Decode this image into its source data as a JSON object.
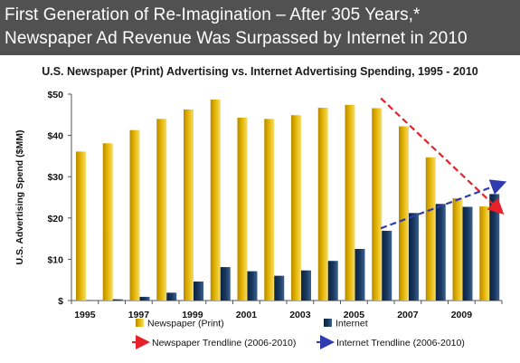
{
  "header": {
    "line1": "First Generation of Re-Imagination – After 305 Years,*",
    "line2": "Newspaper Ad Revenue Was Surpassed by Internet in 2010"
  },
  "chart_data": {
    "type": "bar",
    "title": "U.S. Newspaper (Print) Advertising vs. Internet Advertising Spending, 1995 - 2010",
    "ylabel": "U.S. Advertising Spend ($MM)",
    "xlabel": "",
    "ylim": [
      0,
      50
    ],
    "yticks": [
      0,
      10,
      20,
      30,
      40,
      50
    ],
    "ytick_labels": [
      "$",
      "$10",
      "$20",
      "$30",
      "$40",
      "$50"
    ],
    "categories": [
      "1995",
      "1996",
      "1997",
      "1998",
      "1999",
      "2000",
      "2001",
      "2002",
      "2003",
      "2004",
      "2005",
      "2006",
      "2007",
      "2008",
      "2009",
      "2010"
    ],
    "xtick_labels": [
      "1995",
      "",
      "1997",
      "",
      "1999",
      "",
      "2001",
      "",
      "2003",
      "",
      "2005",
      "",
      "2007",
      "",
      "2009",
      ""
    ],
    "series": [
      {
        "name": "Newspaper (Print)",
        "color": "#e3b300",
        "values": [
          36.1,
          38.1,
          41.3,
          44.0,
          46.3,
          48.7,
          44.3,
          44.0,
          44.9,
          46.7,
          47.4,
          46.6,
          42.2,
          34.7,
          24.8,
          22.8
        ]
      },
      {
        "name": "Internet",
        "color": "#17375e",
        "values": [
          0.1,
          0.3,
          0.9,
          1.9,
          4.6,
          8.1,
          7.1,
          6.0,
          7.3,
          9.6,
          12.5,
          16.9,
          21.2,
          23.4,
          22.7,
          25.8
        ]
      }
    ],
    "trendlines": [
      {
        "name": "Newspaper Trendline (2006-2010)",
        "color": "#e8202a",
        "start": {
          "x": "2006",
          "y": 49.0
        },
        "end": {
          "x": "2010",
          "y": 21.5
        }
      },
      {
        "name": "Internet Trendline (2006-2010)",
        "color": "#2f3cb0",
        "start": {
          "x": "2006",
          "y": 17.5
        },
        "end": {
          "x": "2010",
          "y": 28.5
        }
      }
    ],
    "grid": false,
    "legend": "bottom"
  }
}
